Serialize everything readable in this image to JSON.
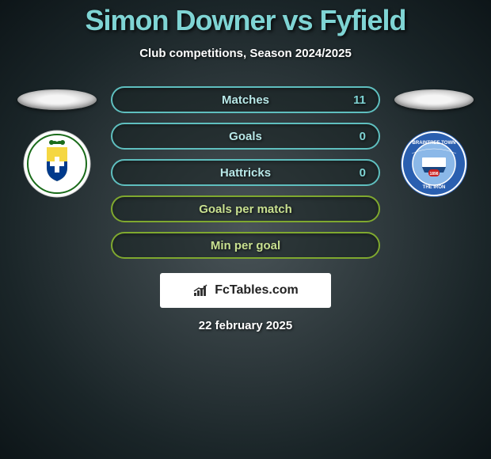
{
  "title": "Simon Downer vs Fyfield",
  "subtitle": "Club competitions, Season 2024/2025",
  "date": "22 february 2025",
  "watermark": "FcTables.com",
  "colors": {
    "title": "#7fd4d4",
    "text": "#ffffff",
    "bar_border_teal": "#5fbfbf",
    "bar_label_teal": "#b8e8e8",
    "bar_value_teal": "#7fd4d4",
    "bar_border_green": "#7fa82f",
    "bar_label_green": "#c8e090",
    "bar_bg": "rgba(20,30,30,0.5)"
  },
  "stats": [
    {
      "label": "Matches",
      "value": "11",
      "style": "teal"
    },
    {
      "label": "Goals",
      "value": "0",
      "style": "teal"
    },
    {
      "label": "Hattricks",
      "value": "0",
      "style": "teal"
    },
    {
      "label": "Goals per match",
      "value": "",
      "style": "green"
    },
    {
      "label": "Min per goal",
      "value": "",
      "style": "green"
    }
  ],
  "left_crest": {
    "bg": "#ffffff",
    "shield_top": "#f5d742",
    "shield_bottom": "#003a8c",
    "accent": "#1a6b1a"
  },
  "right_crest": {
    "bg": "#2a5fb0",
    "ring": "#ffffff",
    "inner": "#8bb8e8",
    "center": "#ffffff",
    "badge": "#c92020"
  }
}
